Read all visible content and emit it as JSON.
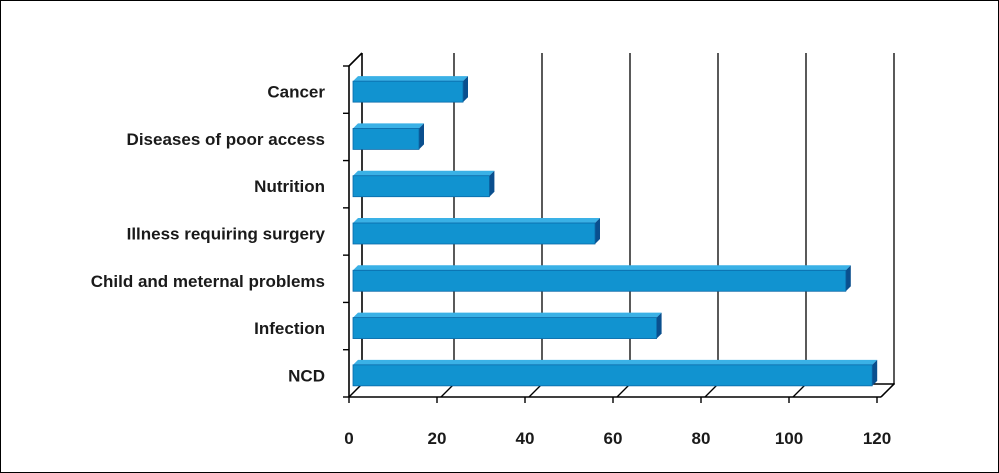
{
  "chart_data": {
    "type": "bar",
    "orientation": "horizontal",
    "style": "3d",
    "title": "",
    "xlabel": "",
    "ylabel": "",
    "categories": [
      "Cancer",
      "Diseases of poor access",
      "Nutrition",
      "Illness requiring surgery",
      "Child and meternal problems",
      "Infection",
      "NCD"
    ],
    "values": [
      25,
      15,
      31,
      55,
      112,
      69,
      118
    ],
    "xlim": [
      0,
      120
    ],
    "xticks": [
      "0",
      "20",
      "40",
      "60",
      "80",
      "100",
      "120"
    ],
    "grid": true,
    "legend": "none",
    "colors": {
      "bar_front": "#1193d0",
      "bar_top": "#3ab1e6",
      "bar_end": "#0a4f8e",
      "axis": "#000000"
    }
  }
}
